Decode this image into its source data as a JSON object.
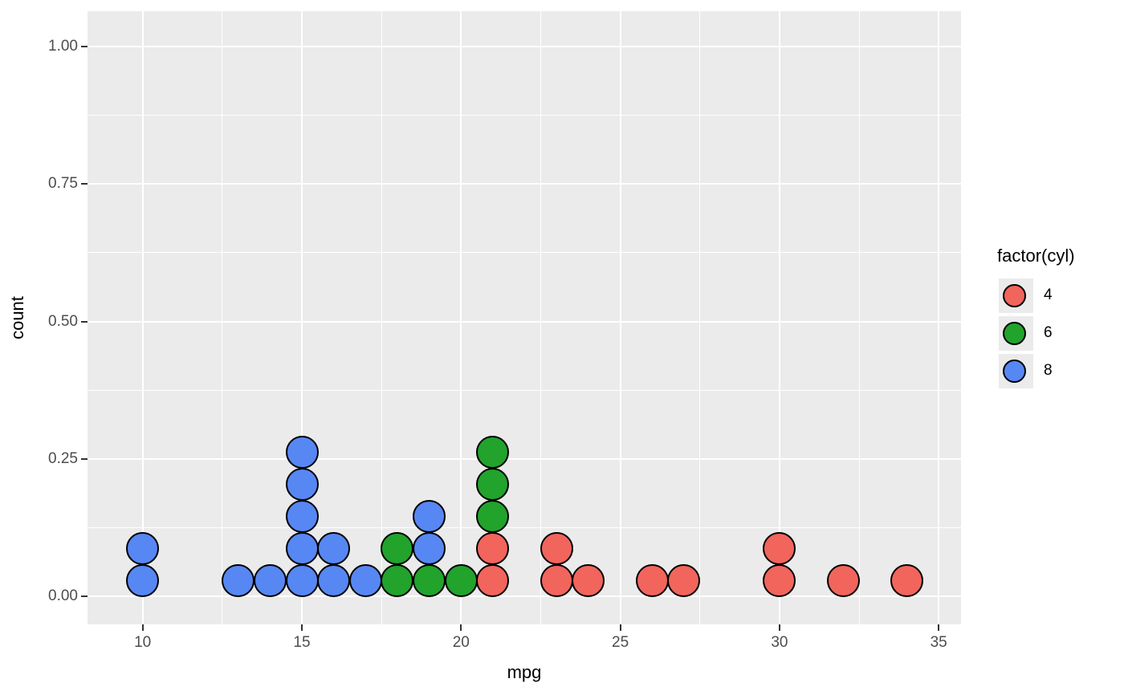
{
  "figure": {
    "background": "#FFFFFF",
    "panel_background": "#EBEBEB",
    "gridline_color": "#FFFFFF",
    "tick_color": "#333333",
    "tick_label_color": "#4D4D4D"
  },
  "chart_data": {
    "type": "dotplot",
    "title": "",
    "xlabel": "mpg",
    "ylabel": "count",
    "x_ticks": [
      10,
      15,
      20,
      25,
      30,
      35
    ],
    "x_minor": [
      12.5,
      17.5,
      22.5,
      27.5,
      32.5
    ],
    "y_ticks": [
      {
        "label": "0.00",
        "value": 0
      },
      {
        "label": "0.25",
        "value": 0.25
      },
      {
        "label": "0.50",
        "value": 0.5
      },
      {
        "label": "0.75",
        "value": 0.75
      },
      {
        "label": "1.00",
        "value": 1
      }
    ],
    "y_minor": [
      0.125,
      0.375,
      0.625,
      0.875
    ],
    "xlim": [
      8.3,
      35.7
    ],
    "ylim": [
      0,
      1.07
    ],
    "grid": true,
    "binwidth": 1,
    "colors_by_cyl": {
      "4": "#F1655D",
      "6": "#21A32C",
      "8": "#5787F3"
    },
    "stacks": [
      {
        "mpg": 10,
        "stack": [
          8,
          8
        ]
      },
      {
        "mpg": 13,
        "stack": [
          8
        ]
      },
      {
        "mpg": 14,
        "stack": [
          8
        ]
      },
      {
        "mpg": 15,
        "stack": [
          8,
          8,
          8,
          8,
          8
        ]
      },
      {
        "mpg": 16,
        "stack": [
          8,
          8
        ]
      },
      {
        "mpg": 17,
        "stack": [
          8
        ]
      },
      {
        "mpg": 18,
        "stack": [
          6,
          6
        ]
      },
      {
        "mpg": 19,
        "stack": [
          6,
          8,
          8
        ]
      },
      {
        "mpg": 20,
        "stack": [
          6
        ]
      },
      {
        "mpg": 21,
        "stack": [
          4,
          4,
          6,
          6,
          6
        ]
      },
      {
        "mpg": 23,
        "stack": [
          4,
          4
        ]
      },
      {
        "mpg": 24,
        "stack": [
          4
        ]
      },
      {
        "mpg": 26,
        "stack": [
          4
        ]
      },
      {
        "mpg": 27,
        "stack": [
          4
        ]
      },
      {
        "mpg": 30,
        "stack": [
          4,
          4
        ]
      },
      {
        "mpg": 32,
        "stack": [
          4
        ]
      },
      {
        "mpg": 34,
        "stack": [
          4
        ]
      }
    ],
    "legend": {
      "title": "factor(cyl)",
      "position": "right",
      "entries": [
        {
          "label": "4",
          "cyl": "4"
        },
        {
          "label": "6",
          "cyl": "6"
        },
        {
          "label": "8",
          "cyl": "8"
        }
      ]
    }
  }
}
